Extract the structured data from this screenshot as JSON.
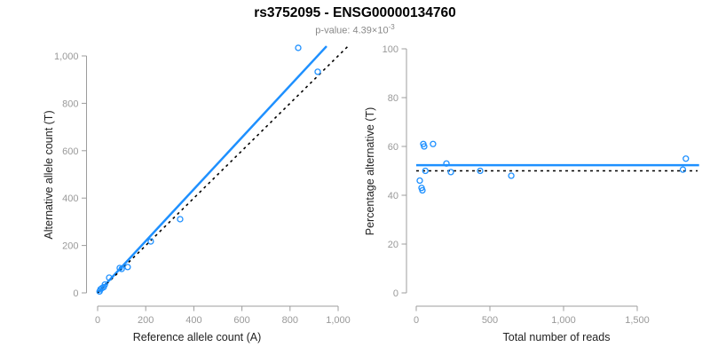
{
  "header": {
    "title": "rs3752095 - ENSG00000134760",
    "subtitle_base": "p-value: 4.39×10",
    "subtitle_exponent": "-3"
  },
  "colors": {
    "accent_blue": "#1E90FF",
    "reference_black": "#000000",
    "axis_gray": "#9c9c9c",
    "tick_label_gray": "#999999",
    "axis_title_dark": "#222222"
  },
  "chart_data": [
    {
      "type": "scatter",
      "name": "allele-counts-scatter",
      "xlabel": "Reference allele count (A)",
      "ylabel": "Alternative allele count (T)",
      "xlim": [
        0,
        1000
      ],
      "ylim": [
        0,
        1000
      ],
      "xticks": [
        0,
        200,
        400,
        600,
        800,
        1000
      ],
      "xtick_labels": [
        "0",
        "200",
        "400",
        "600",
        "800",
        "1,000"
      ],
      "yticks": [
        0,
        200,
        400,
        600,
        800,
        1000
      ],
      "ytick_labels": [
        "0",
        "200",
        "400",
        "600",
        "800",
        "1,000"
      ],
      "grid": false,
      "points": [
        [
          8,
          6
        ],
        [
          12,
          15
        ],
        [
          18,
          20
        ],
        [
          25,
          24
        ],
        [
          30,
          35
        ],
        [
          48,
          64
        ],
        [
          92,
          105
        ],
        [
          100,
          101
        ],
        [
          125,
          109
        ],
        [
          221,
          217
        ],
        [
          343,
          311
        ],
        [
          834,
          1034
        ],
        [
          915,
          933
        ]
      ],
      "lines": [
        {
          "name": "regression-line",
          "x1": 0,
          "y1": 0,
          "x2": 952,
          "y2": 1041,
          "dashed": false,
          "color_key": "accent_blue",
          "width": 2.5
        },
        {
          "name": "identity-line",
          "x1": 0,
          "y1": 0,
          "x2": 1040,
          "y2": 1040,
          "dashed": true,
          "color_key": "reference_black",
          "width": 1.6
        }
      ]
    },
    {
      "type": "scatter",
      "name": "percentage-vs-reads-scatter",
      "xlabel": "Total number of reads",
      "ylabel": "Percentage alternative (T)",
      "xlim": [
        0,
        1500
      ],
      "ylim": [
        0,
        100
      ],
      "xticks": [
        0,
        500,
        1000,
        1500
      ],
      "xtick_labels": [
        "0",
        "500",
        "1,000",
        "1,500"
      ],
      "yticks": [
        0,
        20,
        40,
        60,
        80,
        100
      ],
      "ytick_labels": [
        "0",
        "20",
        "40",
        "60",
        "80",
        "100"
      ],
      "grid": false,
      "points": [
        [
          24,
          46
        ],
        [
          36,
          43
        ],
        [
          42,
          42
        ],
        [
          48,
          61
        ],
        [
          54,
          60
        ],
        [
          62,
          50
        ],
        [
          114,
          61
        ],
        [
          205,
          53
        ],
        [
          235,
          49.5
        ],
        [
          434,
          50
        ],
        [
          645,
          48
        ],
        [
          1810,
          50.5
        ],
        [
          1830,
          55
        ]
      ],
      "lines": [
        {
          "name": "mean-percentage-line",
          "x1": 0,
          "y1": 52.3,
          "x2": 1920,
          "y2": 52.3,
          "dashed": false,
          "color_key": "accent_blue",
          "width": 2.5
        },
        {
          "name": "fifty-percent-line",
          "x1": 0,
          "y1": 50,
          "x2": 1910,
          "y2": 50,
          "dashed": true,
          "color_key": "reference_black",
          "width": 1.6
        }
      ]
    }
  ]
}
